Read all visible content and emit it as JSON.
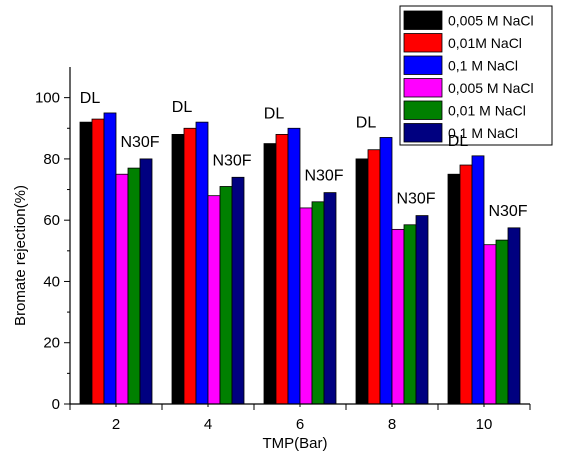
{
  "chart_data": {
    "type": "bar",
    "xlabel": "TMP(Bar)",
    "ylabel": "Bromate rejection(%)",
    "ylim": [
      0,
      110
    ],
    "yticks": [
      0,
      20,
      40,
      60,
      80,
      100
    ],
    "categories": [
      "2",
      "4",
      "6",
      "8",
      "10"
    ],
    "series": [
      {
        "name": "0,005 M NaCl",
        "color": "#000000",
        "values": [
          92,
          88,
          85,
          80,
          75
        ]
      },
      {
        "name": "0,01M NaCl",
        "color": "#ff0000",
        "values": [
          93,
          90,
          88,
          83,
          78
        ]
      },
      {
        "name": "0,1  M  NaCl",
        "color": "#0000ff",
        "values": [
          95,
          92,
          90,
          87,
          81
        ]
      },
      {
        "name": "0,005 M NaCl",
        "color": "#ff00ff",
        "values": [
          75,
          68,
          64,
          57,
          52
        ]
      },
      {
        "name": "0,01 M NaCl",
        "color": "#008000",
        "values": [
          77,
          71,
          66,
          58.5,
          53.5
        ]
      },
      {
        "name": "0,1  M NaCl",
        "color": "#000080",
        "values": [
          80,
          74,
          69,
          61.5,
          57.5
        ]
      }
    ],
    "annotations": {
      "dl_label": "DL",
      "n30f_label": "N30F"
    },
    "legend_placement": "top-right",
    "grid": false
  }
}
